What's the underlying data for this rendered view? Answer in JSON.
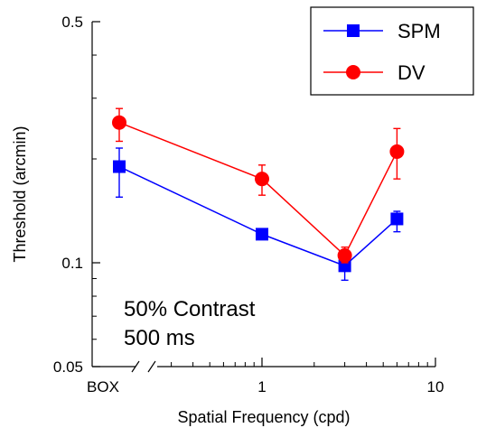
{
  "chart_data": {
    "type": "line",
    "xlabel": "Spatial Frequency (cpd)",
    "ylabel": "Threshold (arcmin)",
    "y_scale": "log",
    "x_scale": "log",
    "ylim": [
      0.05,
      0.5
    ],
    "xlim": [
      1,
      10
    ],
    "grid": false,
    "legend_position": "top-right",
    "y_ticks": [
      {
        "value": 0.05,
        "label": "0.05"
      },
      {
        "value": 0.1,
        "label": "0.1"
      },
      {
        "value": 0.5,
        "label": "0.5"
      }
    ],
    "x_ticks": [
      {
        "value": 1,
        "label": "1"
      },
      {
        "value": 10,
        "label": "10"
      }
    ],
    "box_label": "BOX",
    "annotations": [
      "50% Contrast",
      "500 ms"
    ],
    "series": [
      {
        "name": "SPM",
        "color": "#0000ff",
        "marker": "square",
        "box": {
          "y": 0.19,
          "err_low": 0.155,
          "err_high": 0.215
        },
        "points": [
          {
            "x": 1,
            "y": 0.121,
            "err_low": 0.121,
            "err_high": 0.121
          },
          {
            "x": 3,
            "y": 0.098,
            "err_low": 0.089,
            "err_high": 0.099
          },
          {
            "x": 6,
            "y": 0.134,
            "err_low": 0.123,
            "err_high": 0.141
          }
        ]
      },
      {
        "name": "DV",
        "color": "#ff0000",
        "marker": "circle",
        "box": {
          "y": 0.255,
          "err_low": 0.225,
          "err_high": 0.28
        },
        "points": [
          {
            "x": 1,
            "y": 0.175,
            "err_low": 0.157,
            "err_high": 0.192
          },
          {
            "x": 3,
            "y": 0.105,
            "err_low": 0.1,
            "err_high": 0.111
          },
          {
            "x": 6,
            "y": 0.21,
            "err_low": 0.175,
            "err_high": 0.245
          }
        ]
      }
    ]
  }
}
